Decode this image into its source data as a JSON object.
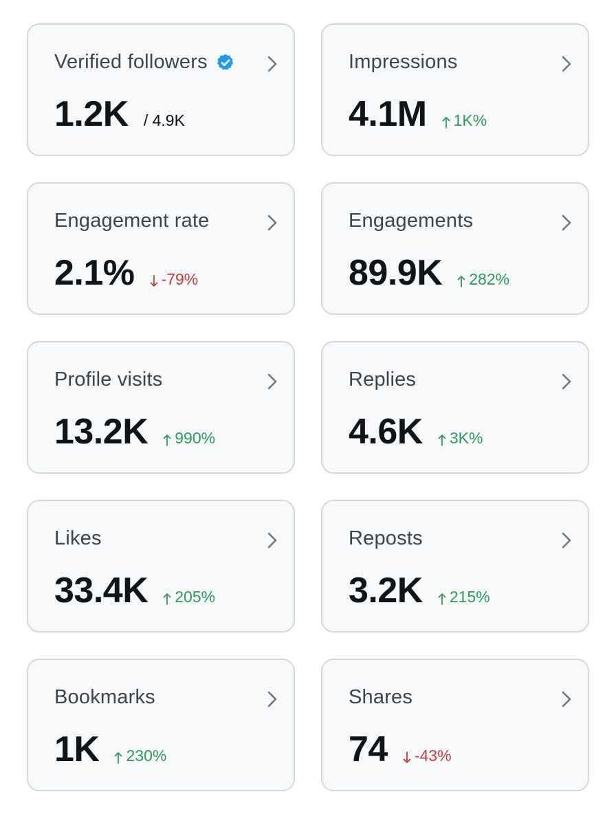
{
  "colors": {
    "card_bg": "#f7f8f9",
    "card_border": "#cfd9de",
    "up": "#2e9a5e",
    "down": "#c93c3c",
    "verified_badge": "#1d9bf0"
  },
  "cards": [
    {
      "label": "Verified followers",
      "value": "1.2K",
      "total": "/ 4.9K",
      "verified_icon": "verified-badge-icon"
    },
    {
      "label": "Impressions",
      "value": "4.1M",
      "change": "1K%",
      "direction": "up"
    },
    {
      "label": "Engagement rate",
      "value": "2.1%",
      "change": "-79%",
      "direction": "down"
    },
    {
      "label": "Engagements",
      "value": "89.9K",
      "change": "282%",
      "direction": "up"
    },
    {
      "label": "Profile visits",
      "value": "13.2K",
      "change": "990%",
      "direction": "up"
    },
    {
      "label": "Replies",
      "value": "4.6K",
      "change": "3K%",
      "direction": "up"
    },
    {
      "label": "Likes",
      "value": "33.4K",
      "change": "205%",
      "direction": "up"
    },
    {
      "label": "Reposts",
      "value": "3.2K",
      "change": "215%",
      "direction": "up"
    },
    {
      "label": "Bookmarks",
      "value": "1K",
      "change": "230%",
      "direction": "up"
    },
    {
      "label": "Shares",
      "value": "74",
      "change": "-43%",
      "direction": "down"
    }
  ]
}
